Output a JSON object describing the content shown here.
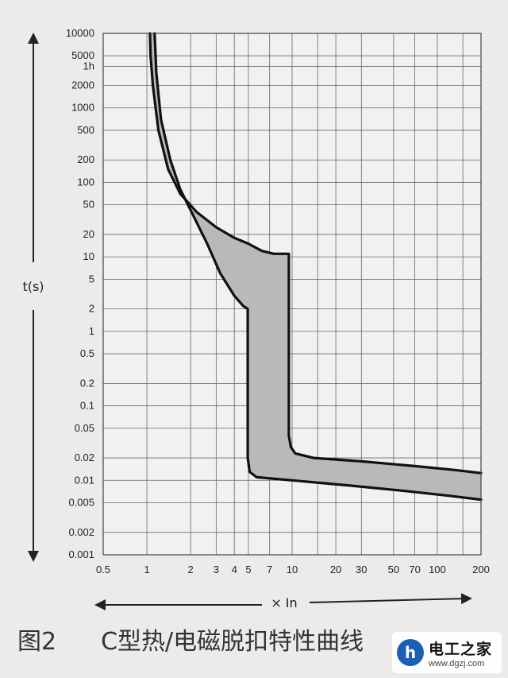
{
  "caption": {
    "figure": "图2",
    "title": "C型热/电磁脱扣特性曲线"
  },
  "watermark": {
    "name": "电工之家",
    "url": "www.dgzj.com",
    "logo_letter": "h"
  },
  "chart_data": {
    "type": "area",
    "title": "图2 C型热/电磁脱扣特性曲线",
    "xlabel": "× In",
    "ylabel": "t(s)",
    "xscale": "log",
    "yscale": "log",
    "xlim": [
      0.5,
      200
    ],
    "ylim": [
      0.001,
      10000
    ],
    "grid": true,
    "x_ticks": [
      0.5,
      1,
      2,
      3,
      4,
      5,
      7,
      10,
      20,
      30,
      50,
      70,
      100,
      200
    ],
    "x_tick_labels": [
      "0.5",
      "1",
      "2",
      "3",
      "4",
      "5",
      "7",
      "10",
      "20",
      "30",
      "50",
      "70",
      "100",
      "200"
    ],
    "y_ticks": [
      0.001,
      0.002,
      0.005,
      0.01,
      0.02,
      0.05,
      0.1,
      0.2,
      0.5,
      1,
      2,
      5,
      10,
      20,
      50,
      100,
      200,
      500,
      1000,
      2000,
      3600,
      5000,
      10000
    ],
    "y_tick_labels": [
      "0.001",
      "0.002",
      "0.005",
      "0.01",
      "0.02",
      "0.05",
      "0.1",
      "0.2",
      "0.5",
      "1",
      "2",
      "5",
      "10",
      "20",
      "50",
      "100",
      "200",
      "500",
      "1000",
      "2000",
      "1h",
      "5000",
      "10000"
    ],
    "fill_color": "#b9b9b9",
    "line_color": "#111111",
    "series": [
      {
        "points": [
          [
            1.13,
            10000
          ],
          [
            1.16,
            3000
          ],
          [
            1.25,
            700
          ],
          [
            1.45,
            200
          ],
          [
            1.7,
            80
          ],
          [
            2.1,
            35
          ],
          [
            2.6,
            15
          ],
          [
            3.2,
            6
          ],
          [
            4.0,
            3.0
          ],
          [
            4.6,
            2.2
          ],
          [
            4.95,
            2.0
          ],
          [
            4.95,
            0.02
          ],
          [
            5.1,
            0.013
          ],
          [
            5.7,
            0.011
          ],
          [
            10,
            0.01
          ],
          [
            25,
            0.0085
          ],
          [
            60,
            0.0072
          ],
          [
            120,
            0.0062
          ],
          [
            200,
            0.0055
          ]
        ]
      },
      {
        "points": [
          [
            1.05,
            10000
          ],
          [
            1.06,
            5000
          ],
          [
            1.1,
            2000
          ],
          [
            1.2,
            500
          ],
          [
            1.4,
            150
          ],
          [
            1.7,
            70
          ],
          [
            2.2,
            40
          ],
          [
            3.0,
            25
          ],
          [
            4.0,
            18
          ],
          [
            5.0,
            15
          ],
          [
            6.2,
            12
          ],
          [
            7.5,
            11
          ],
          [
            9.5,
            11
          ],
          [
            9.5,
            0.04
          ],
          [
            9.8,
            0.028
          ],
          [
            10.5,
            0.023
          ],
          [
            14,
            0.02
          ],
          [
            30,
            0.018
          ],
          [
            70,
            0.0155
          ],
          [
            130,
            0.0138
          ],
          [
            200,
            0.0125
          ]
        ]
      }
    ]
  }
}
